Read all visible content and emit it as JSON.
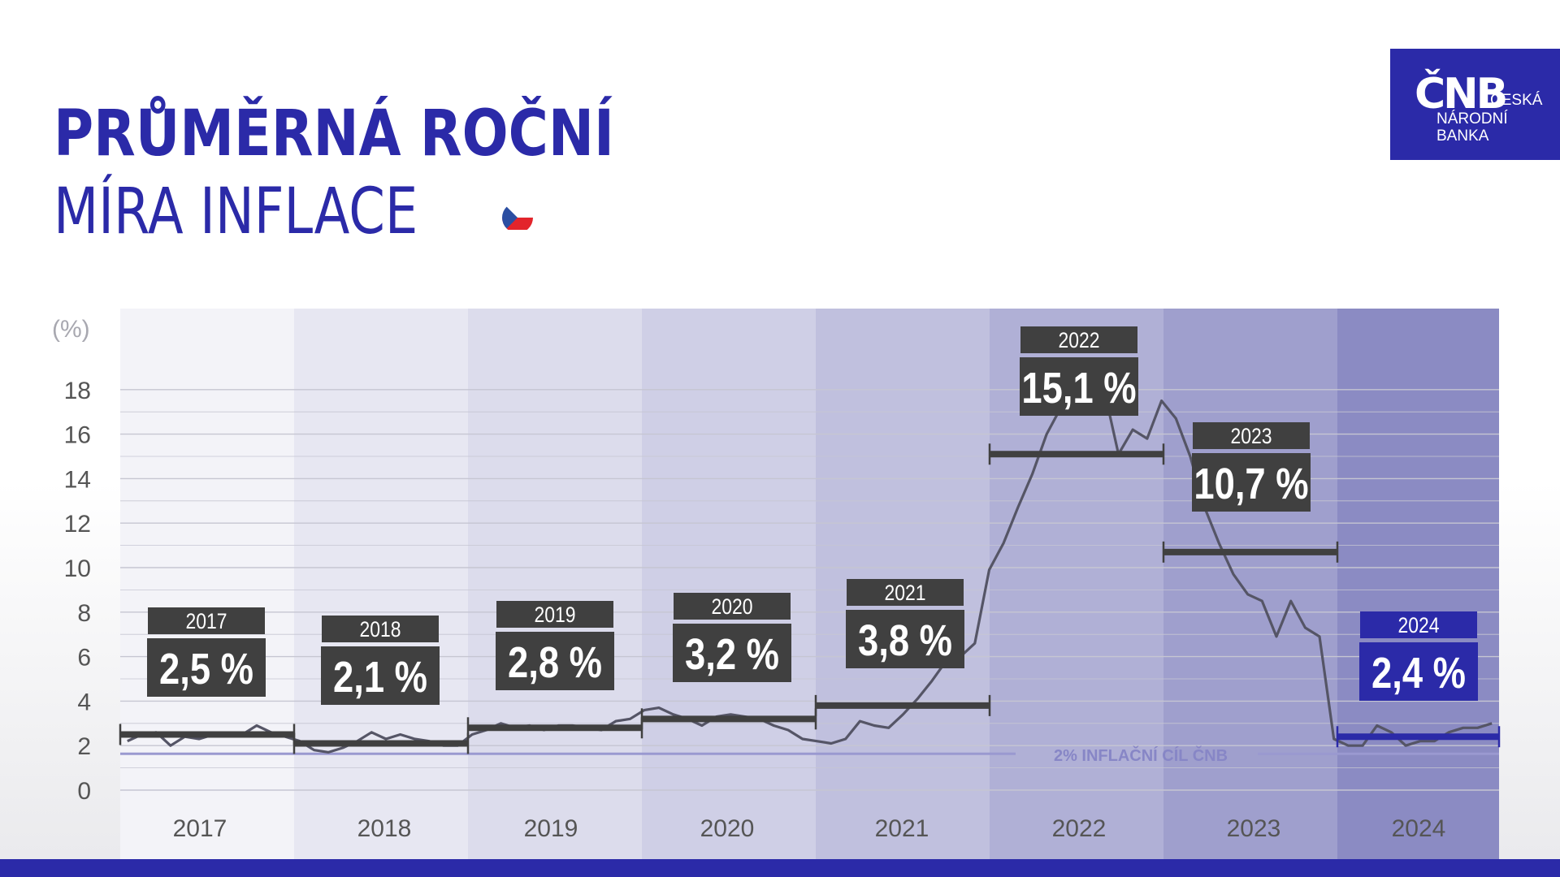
{
  "header": {
    "title_line1": "PRŮMĚRNÁ ROČNÍ",
    "title_line2": "MÍRA INFLACE"
  },
  "logo": {
    "mark": "ČNB",
    "line1": "ČESKÁ",
    "line2": "NÁRODNÍ",
    "line3": "BANKA"
  },
  "colors": {
    "brand": "#2b2aa8",
    "label_box": "#404040",
    "highlight_box": "#2b2aa8",
    "line": "#555566",
    "target_line": "#9a99d0"
  },
  "chart_data": {
    "type": "line",
    "ylabel": "(%)",
    "ylim": [
      0,
      20
    ],
    "yticks": [
      0,
      2,
      4,
      6,
      8,
      10,
      12,
      14,
      16,
      18
    ],
    "grid": true,
    "categories": [
      "2017",
      "2018",
      "2019",
      "2020",
      "2021",
      "2022",
      "2023",
      "2024"
    ],
    "annual_averages": [
      {
        "year": "2017",
        "label": "2,5 %",
        "value": 2.5
      },
      {
        "year": "2018",
        "label": "2,1 %",
        "value": 2.1
      },
      {
        "year": "2019",
        "label": "2,8 %",
        "value": 2.8
      },
      {
        "year": "2020",
        "label": "3,2 %",
        "value": 3.2
      },
      {
        "year": "2021",
        "label": "3,8 %",
        "value": 3.8
      },
      {
        "year": "2022",
        "label": "15,1 %",
        "value": 15.1
      },
      {
        "year": "2023",
        "label": "10,7 %",
        "value": 10.7
      },
      {
        "year": "2024",
        "label": "2,4 %",
        "value": 2.4
      }
    ],
    "monthly_series": [
      2.2,
      2.5,
      2.6,
      2.0,
      2.4,
      2.3,
      2.5,
      2.5,
      2.5,
      2.9,
      2.6,
      2.4,
      2.2,
      1.8,
      1.7,
      1.9,
      2.2,
      2.6,
      2.3,
      2.5,
      2.3,
      2.2,
      2.0,
      2.0,
      2.5,
      2.7,
      3.0,
      2.8,
      2.9,
      2.7,
      2.9,
      2.9,
      2.8,
      2.7,
      3.1,
      3.2,
      3.6,
      3.7,
      3.4,
      3.2,
      2.9,
      3.3,
      3.4,
      3.3,
      3.2,
      2.9,
      2.7,
      2.3,
      2.2,
      2.1,
      2.3,
      3.1,
      2.9,
      2.8,
      3.4,
      4.1,
      4.9,
      5.8,
      6.0,
      6.6,
      9.9,
      11.1,
      12.7,
      14.2,
      16.0,
      17.2,
      17.5,
      17.2,
      18.0,
      15.1,
      16.2,
      15.8,
      17.5,
      16.7,
      15.0,
      12.7,
      11.1,
      9.7,
      8.8,
      8.5,
      6.9,
      8.5,
      7.3,
      6.9,
      2.3,
      2.0,
      2.0,
      2.9,
      2.6,
      2.0,
      2.2,
      2.2,
      2.6,
      2.8,
      2.8,
      3.0
    ],
    "annotations": [
      {
        "text": "2% INFLAČNÍ CÍL ČNB",
        "value": 2
      }
    ]
  }
}
